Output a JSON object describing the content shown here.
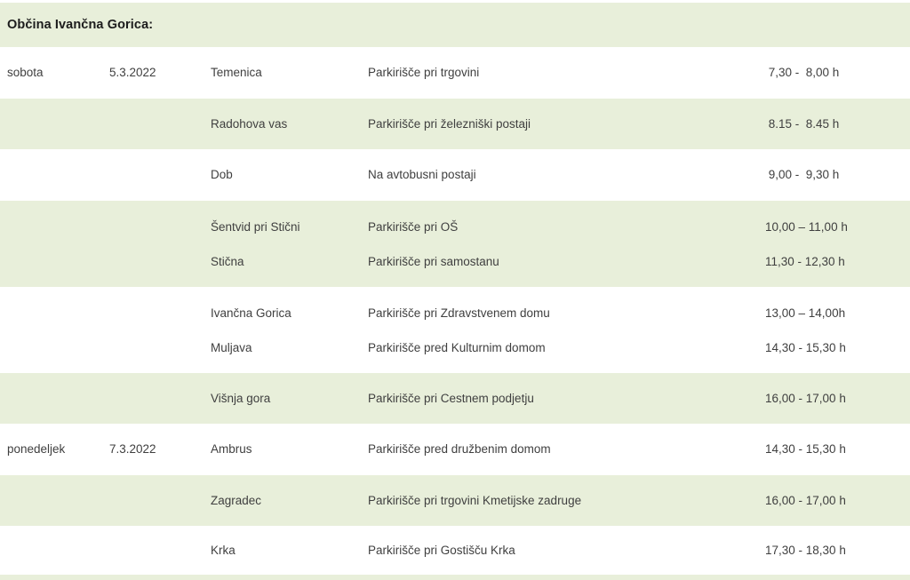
{
  "title": "Občina Ivančna Gorica:",
  "colors": {
    "row_highlight": "#e8efda",
    "text": "#3f3f3f",
    "title_text": "#1c1c1c"
  },
  "table": {
    "rows": [
      {
        "shade": "white",
        "day": "sobota",
        "date": "5.3.2022",
        "entries": [
          {
            "place": "Temenica",
            "venue": "Parkirišče pri trgovini",
            "time": " 7,30 -  8,00 h"
          }
        ]
      },
      {
        "shade": "green",
        "entries": [
          {
            "place": "Radohova vas",
            "venue": "Parkirišče pri železniški postaji",
            "time": " 8.15 -  8.45 h"
          }
        ]
      },
      {
        "shade": "white",
        "entries": [
          {
            "place": "Dob",
            "venue": "Na avtobusni postaji",
            "time": " 9,00 -  9,30 h"
          }
        ]
      },
      {
        "shade": "green",
        "entries": [
          {
            "place": "Šentvid pri Stični",
            "venue": "Parkirišče pri OŠ",
            "time": "10,00 – 11,00 h"
          },
          {
            "place": "Stična",
            "venue": "Parkirišče pri samostanu",
            "time": "11,30 - 12,30 h"
          }
        ]
      },
      {
        "shade": "white",
        "entries": [
          {
            "place": "Ivančna Gorica",
            "venue": "Parkirišče pri Zdravstvenem domu",
            "time": "13,00 – 14,00h"
          },
          {
            "place": "Muljava",
            "venue": "Parkirišče pred Kulturnim domom",
            "time": "14,30 - 15,30 h"
          }
        ]
      },
      {
        "shade": "green",
        "entries": [
          {
            "place": "Višnja gora",
            "venue": "Parkirišče pri Cestnem podjetju",
            "time": "16,00 - 17,00 h"
          }
        ]
      },
      {
        "shade": "white",
        "day": "ponedeljek",
        "date": "7.3.2022",
        "entries": [
          {
            "place": "Ambrus",
            "venue": "Parkirišče pred družbenim domom",
            "time": "14,30 - 15,30 h"
          }
        ]
      },
      {
        "shade": "green",
        "entries": [
          {
            "place": "Zagradec",
            "venue": "Parkirišče pri trgovini Kmetijske zadruge",
            "time": "16,00 - 17,00 h"
          }
        ]
      },
      {
        "shade": "white",
        "entries": [
          {
            "place": "Krka",
            "venue": "Parkirišče pri Gostišču Krka",
            "time": "17,30 - 18,30 h"
          }
        ]
      }
    ]
  }
}
